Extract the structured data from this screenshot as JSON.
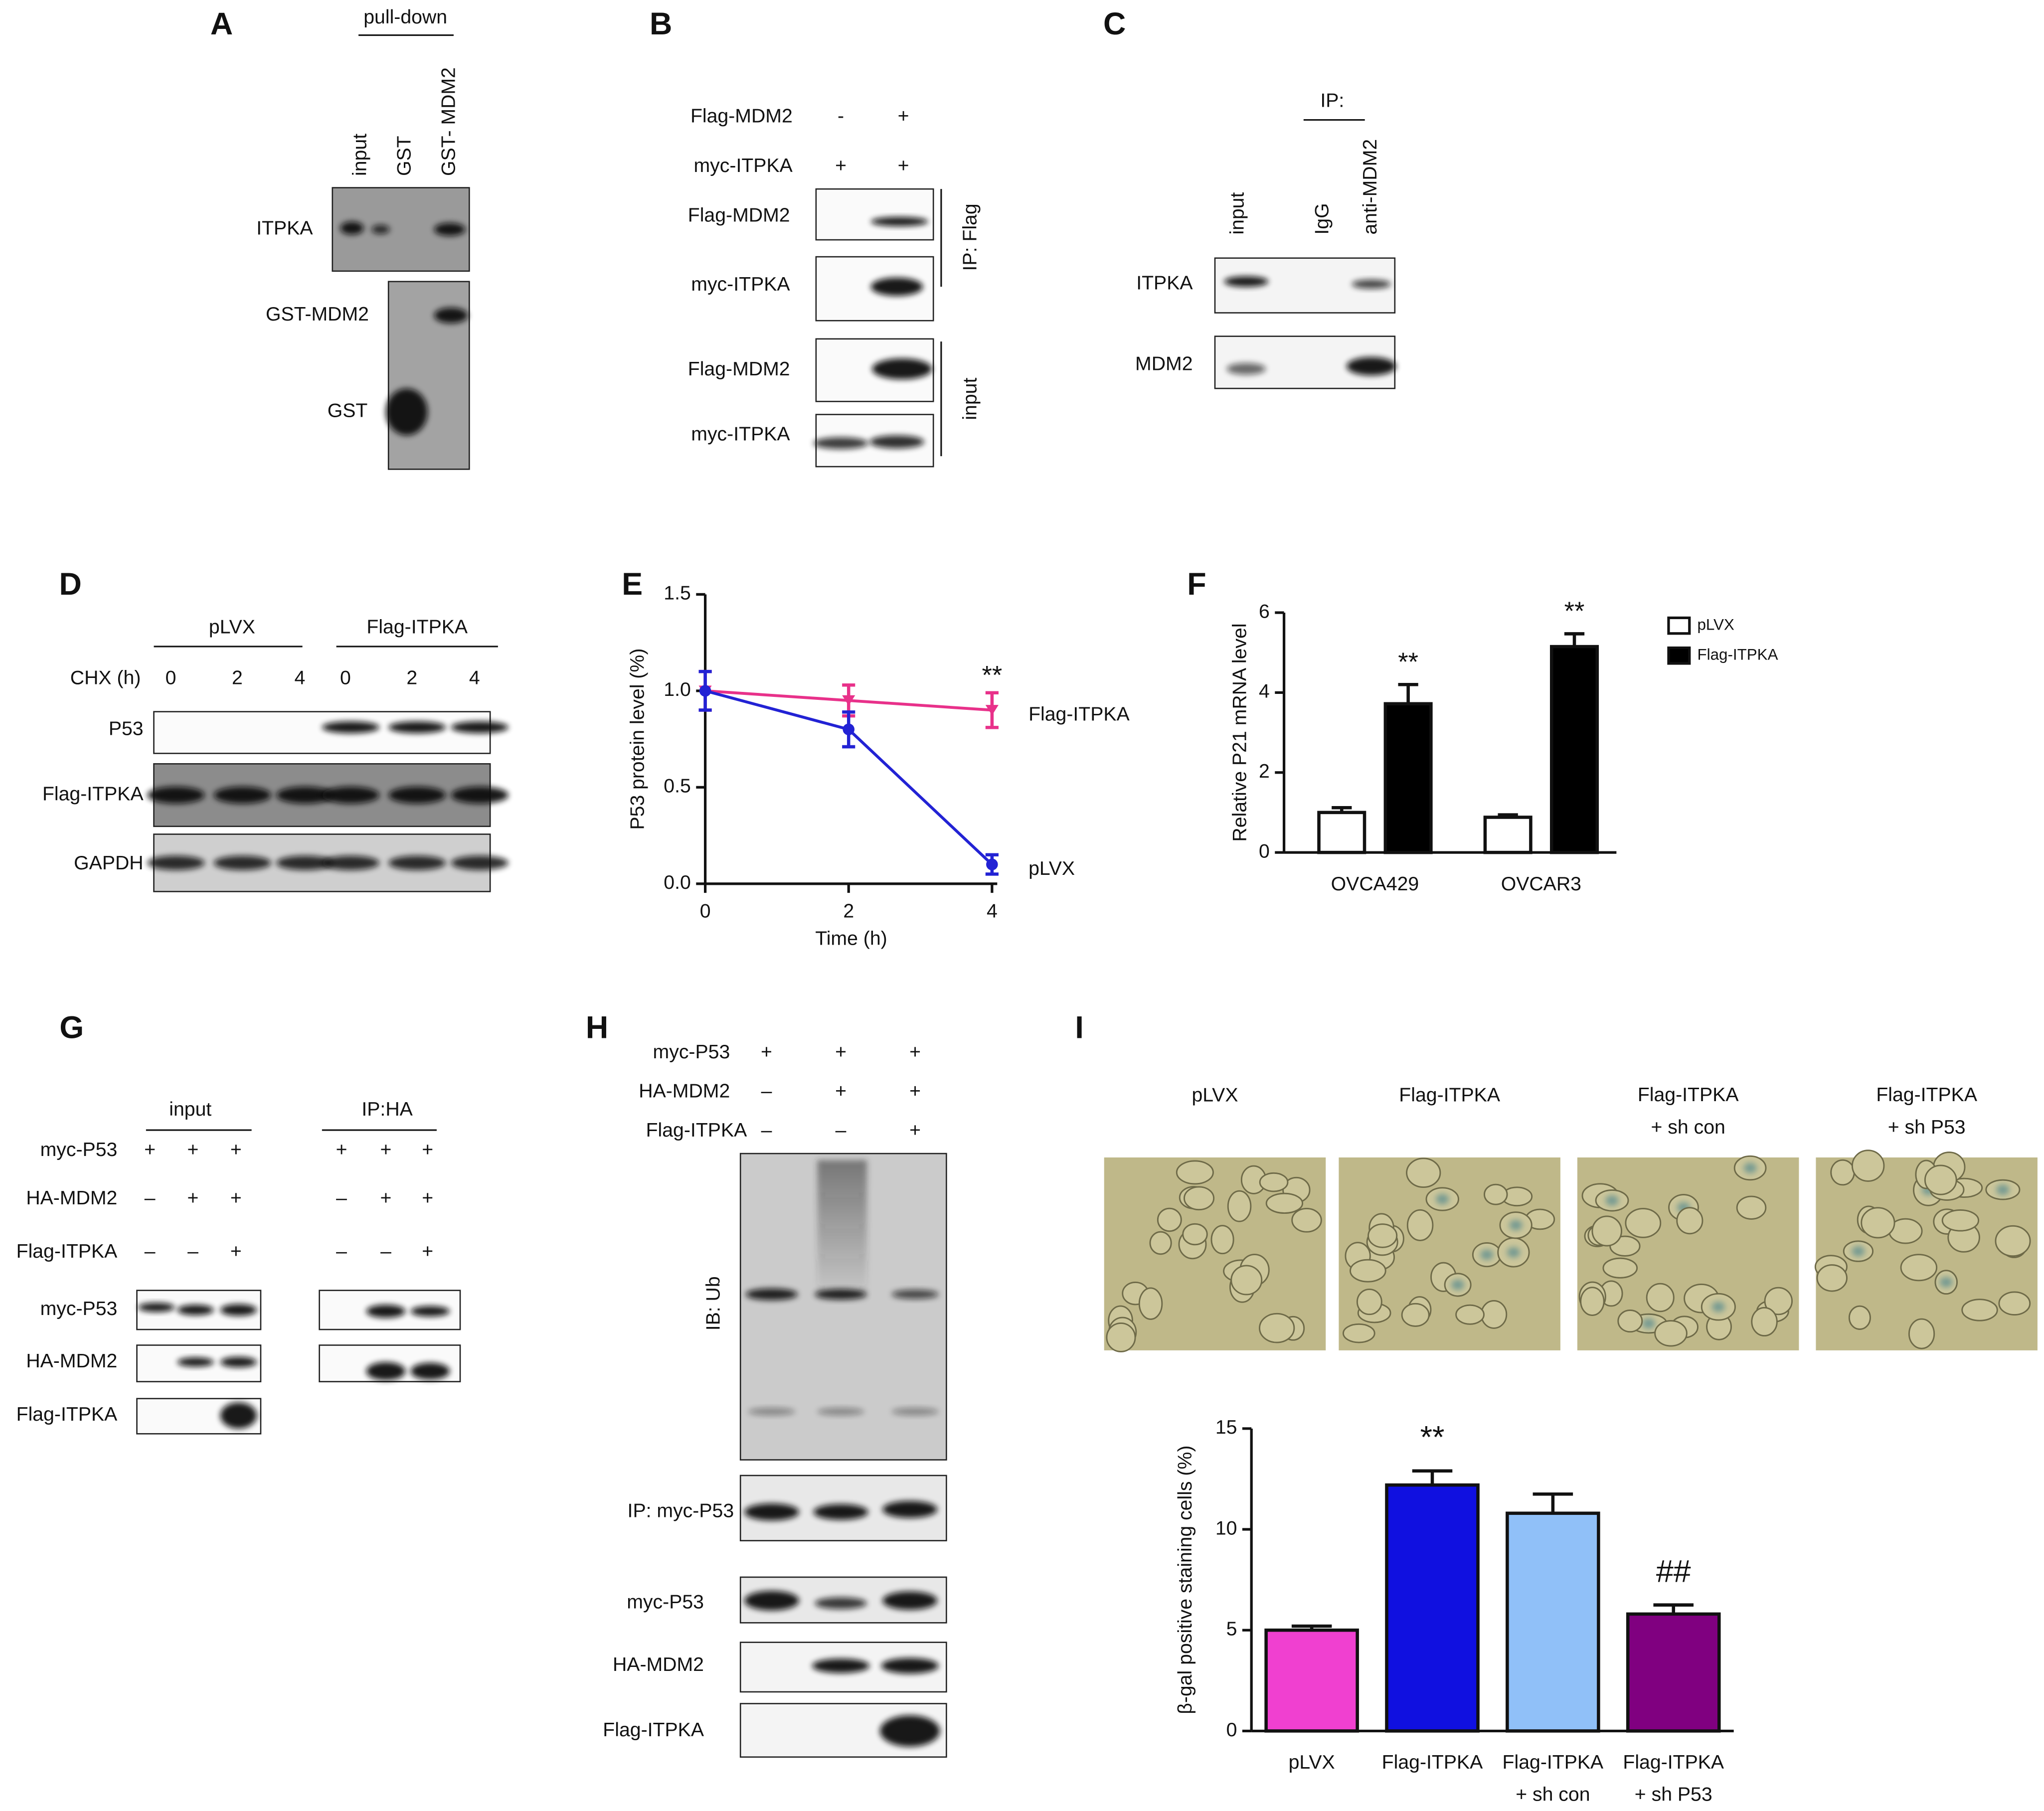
{
  "panels": {
    "A": {
      "label": "A",
      "header": "pull-down",
      "lanes": [
        "input",
        "GST",
        "GST- MDM2"
      ],
      "rows": [
        "ITPKA",
        "GST-MDM2",
        "GST"
      ]
    },
    "B": {
      "label": "B",
      "conditions": [
        {
          "name": "Flag-MDM2",
          "marks": [
            "-",
            "+"
          ]
        },
        {
          "name": "myc-ITPKA",
          "marks": [
            "+",
            "+"
          ]
        }
      ],
      "rows": [
        "Flag-MDM2",
        "myc-ITPKA",
        "Flag-MDM2",
        "myc-ITPKA"
      ],
      "groups": [
        "IP: Flag",
        "input"
      ]
    },
    "C": {
      "label": "C",
      "header": "IP:",
      "lanes": [
        "input",
        "IgG",
        "anti-MDM2"
      ],
      "rows": [
        "ITPKA",
        "MDM2"
      ]
    },
    "D": {
      "label": "D",
      "groups": [
        "pLVX",
        "Flag-ITPKA"
      ],
      "condition": "CHX (h)",
      "times": [
        "0",
        "2",
        "4",
        "0",
        "2",
        "4"
      ],
      "rows": [
        "P53",
        "Flag-ITPKA",
        "GAPDH"
      ]
    },
    "G": {
      "label": "G",
      "groups": [
        "input",
        "IP:HA"
      ],
      "conditions": [
        {
          "name": "myc-P53",
          "marks": [
            "+",
            "+",
            "+",
            "+",
            "+",
            "+"
          ]
        },
        {
          "name": "HA-MDM2",
          "marks": [
            "–",
            "+",
            "+",
            "–",
            "+",
            "+"
          ]
        },
        {
          "name": "Flag-ITPKA",
          "marks": [
            "–",
            "–",
            "+",
            "–",
            "–",
            "+"
          ]
        }
      ],
      "rows": [
        "myc-P53",
        "HA-MDM2",
        "Flag-ITPKA"
      ]
    },
    "H": {
      "label": "H",
      "conditions": [
        {
          "name": "myc-P53",
          "marks": [
            "+",
            "+",
            "+"
          ]
        },
        {
          "name": "HA-MDM2",
          "marks": [
            "–",
            "+",
            "+"
          ]
        },
        {
          "name": "Flag-ITPKA",
          "marks": [
            "–",
            "–",
            "+"
          ]
        }
      ],
      "probe": "IB: Ub",
      "rows": [
        "IP: myc-P53",
        "myc-P53",
        "HA-MDM2",
        "Flag-ITPKA"
      ]
    },
    "I": {
      "label": "I",
      "images": [
        "pLVX",
        "Flag-ITPKA",
        "Flag-ITPKA\n+ sh con",
        "Flag-ITPKA\n+ sh P53"
      ]
    }
  },
  "chart_data": [
    {
      "type": "line",
      "panel": "E",
      "x": [
        0,
        2,
        4
      ],
      "xlim": [
        0,
        4
      ],
      "xticks": [
        0,
        2,
        4
      ],
      "ylim": [
        0,
        1.5
      ],
      "yticks": [
        {
          "value": 0,
          "label": "0.0"
        },
        {
          "value": 0.5,
          "label": "0.5"
        },
        {
          "value": 1,
          "label": "1.0"
        },
        {
          "value": 1.5,
          "label": "1.5"
        }
      ],
      "xlabel": "Time (h)",
      "ylabel": "P53 protein level (%)",
      "annotation": "**",
      "series": [
        {
          "name": "Flag-ITPKA",
          "color": "#e8318a",
          "values": [
            1.0,
            0.95,
            0.9
          ],
          "errors": [
            0.1,
            0.08,
            0.09
          ]
        },
        {
          "name": "pLVX",
          "color": "#2222d4",
          "values": [
            1.0,
            0.8,
            0.1
          ],
          "errors": [
            0.1,
            0.09,
            0.05
          ]
        }
      ]
    },
    {
      "type": "bar",
      "panel": "F",
      "categories": [
        "OVCA429",
        "OVCAR3"
      ],
      "ylim": [
        0,
        6
      ],
      "yticks": [
        0,
        2,
        4,
        6
      ],
      "ylabel": "Relative P21 mRNA level",
      "legend": "top-right",
      "annotations": [
        "**",
        "**"
      ],
      "series": [
        {
          "name": "pLVX",
          "color": "#ffffff",
          "values": [
            1.0,
            0.88
          ],
          "errors": [
            0.12,
            0.06
          ]
        },
        {
          "name": "Flag-ITPKA",
          "color": "#000000",
          "values": [
            3.72,
            5.15
          ],
          "errors": [
            0.48,
            0.32
          ]
        }
      ]
    },
    {
      "type": "bar",
      "panel": "I",
      "categories": [
        "pLVX",
        "Flag-ITPKA",
        "Flag-ITPKA\n+ sh con",
        "Flag-ITPKA\n+ sh P53"
      ],
      "values": [
        5.0,
        12.2,
        10.8,
        5.8
      ],
      "errors": [
        0.2,
        0.7,
        0.95,
        0.45
      ],
      "colors": [
        "#f040d0",
        "#1010e0",
        "#90c0f8",
        "#800080"
      ],
      "ylim": [
        0,
        15
      ],
      "yticks": [
        0,
        5,
        10,
        15
      ],
      "ylabel": "β-gal positive staining cells (%)",
      "annotations": [
        null,
        "**",
        null,
        "##"
      ]
    }
  ]
}
